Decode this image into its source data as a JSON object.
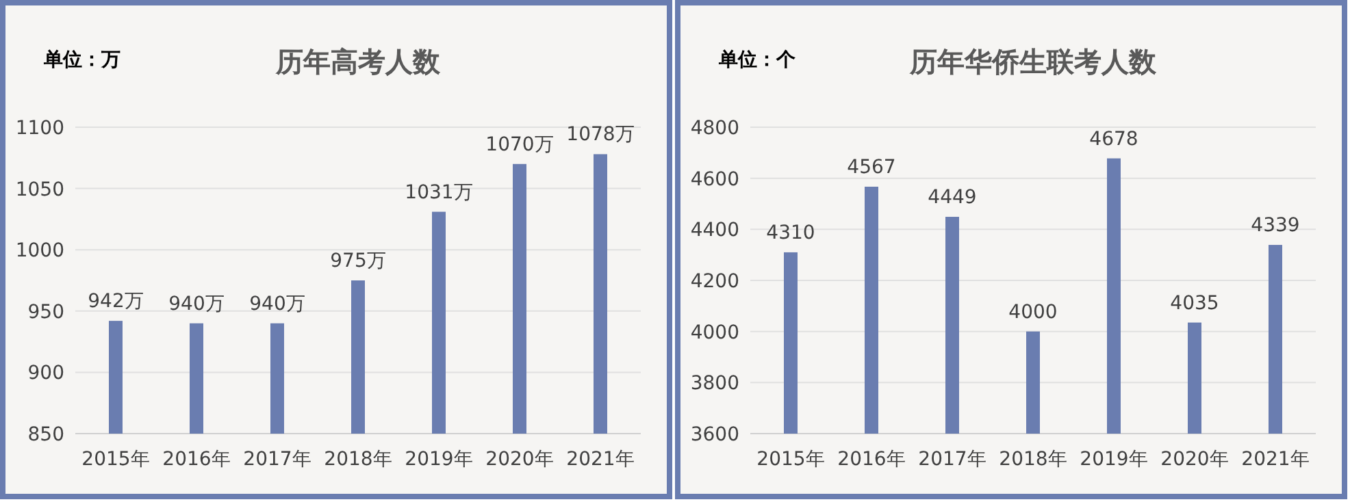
{
  "chart_data": [
    {
      "type": "bar",
      "title": "历年高考人数",
      "annotations": [
        "单位：万"
      ],
      "categories": [
        "2015年",
        "2016年",
        "2017年",
        "2018年",
        "2019年",
        "2020年",
        "2021年"
      ],
      "values": [
        942,
        940,
        940,
        975,
        1031,
        1070,
        1078
      ],
      "value_labels": [
        "942万",
        "940万",
        "940万",
        "975万",
        "1031万",
        "1070万",
        "1078万"
      ],
      "color": "#6a7db0",
      "ylim": [
        850,
        1100
      ],
      "yticks": [
        850,
        900,
        950,
        1000,
        1050,
        1100
      ],
      "grid": "y"
    },
    {
      "type": "bar",
      "title": "历年华侨生联考人数",
      "annotations": [
        "单位：个"
      ],
      "categories": [
        "2015年",
        "2016年",
        "2017年",
        "2018年",
        "2019年",
        "2020年",
        "2021年"
      ],
      "values": [
        4310,
        4567,
        4449,
        4000,
        4678,
        4035,
        4339
      ],
      "data_labels": true,
      "color": "#6a7db0",
      "ylim": [
        3600,
        4800
      ],
      "yticks": [
        3600,
        3800,
        4000,
        4200,
        4400,
        4600,
        4800
      ],
      "grid": "y"
    }
  ]
}
